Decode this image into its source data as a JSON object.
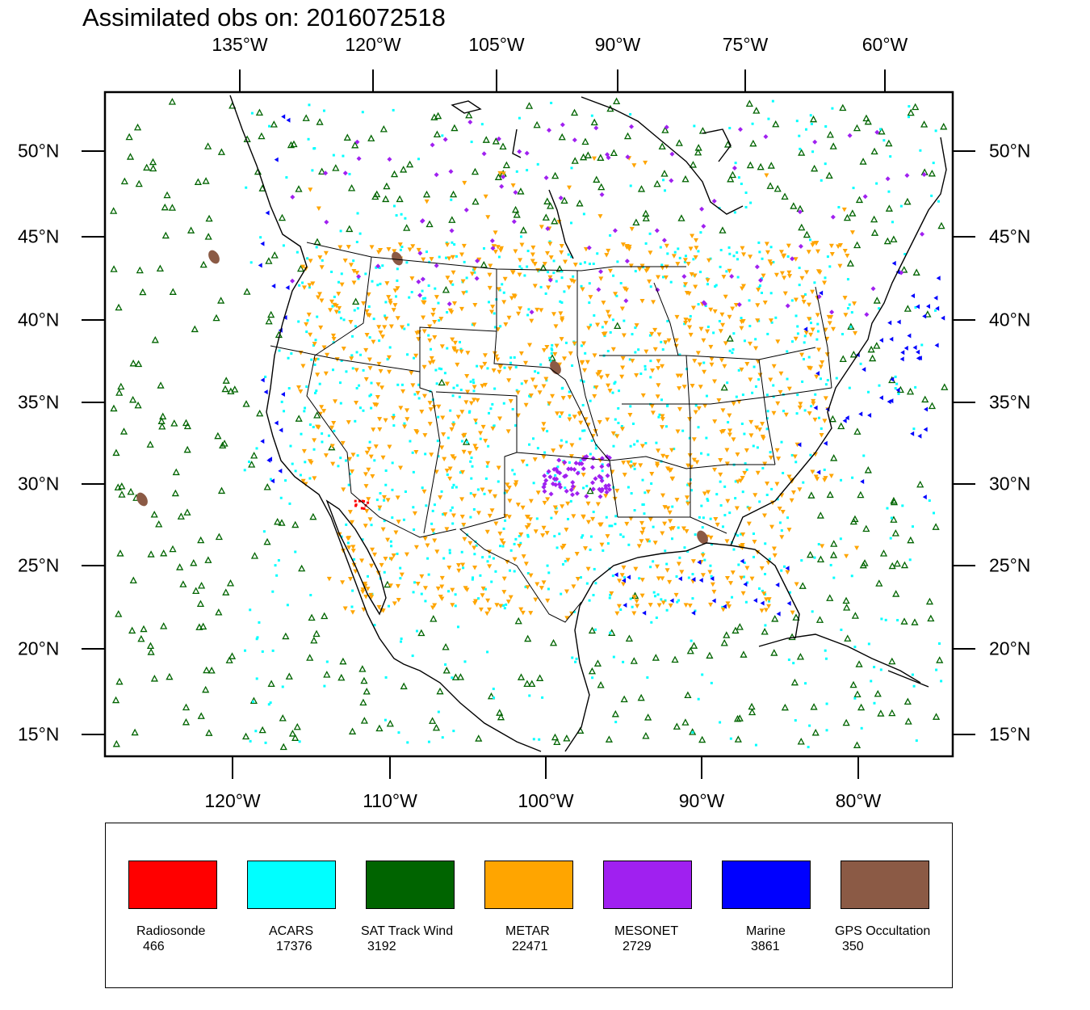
{
  "title": "Assimilated obs on: 2016072518",
  "axes": {
    "top_lon_labels": [
      "135°W",
      "120°W",
      "105°W",
      "90°W",
      "75°W",
      "60°W"
    ],
    "bottom_lon_labels": [
      "120°W",
      "110°W",
      "100°W",
      "90°W",
      "80°W"
    ],
    "left_lat_labels": [
      "50°N",
      "45°N",
      "40°N",
      "35°N",
      "30°N",
      "25°N",
      "20°N",
      "15°N"
    ],
    "right_lat_labels": [
      "50°N",
      "45°N",
      "40°N",
      "35°N",
      "30°N",
      "25°N",
      "20°N",
      "15°N"
    ]
  },
  "legend": [
    {
      "name": "Radiosonde",
      "count": "466",
      "color": "#ff0000"
    },
    {
      "name": "ACARS",
      "count": "17376",
      "color": "#00ffff"
    },
    {
      "name": "SAT Track Wind",
      "count": "3192",
      "color": "#006400"
    },
    {
      "name": "METAR",
      "count": "22471",
      "color": "#ffa500"
    },
    {
      "name": "MESONET",
      "count": "2729",
      "color": "#a020f0"
    },
    {
      "name": "Marine",
      "count": "3861",
      "color": "#0000ff"
    },
    {
      "name": "GPS Occultation",
      "count": "350",
      "color": "#8b5a45"
    }
  ]
}
